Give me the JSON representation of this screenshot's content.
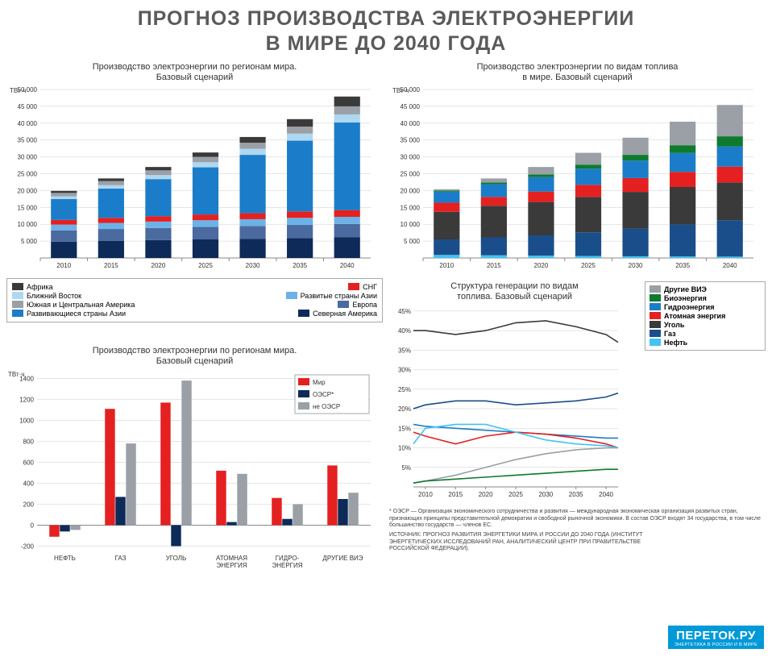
{
  "title_l1": "ПРОГНОЗ ПРОИЗВОДСТВА ЭЛЕКТРОЭНЕРГИИ",
  "title_l2": "В МИРЕ ДО 2040 ГОДА",
  "chart1": {
    "title_l1": "Производство электроэнергии по регионам мира.",
    "title_l2": "Базовый сценарий",
    "yunit": "ТВт·ч",
    "years": [
      "2010",
      "2015",
      "2020",
      "2025",
      "2030",
      "2035",
      "2040"
    ],
    "yticks": [
      5000,
      10000,
      15000,
      20000,
      25000,
      30000,
      35000,
      40000,
      45000,
      50000
    ],
    "ymax": 50000,
    "series": [
      {
        "name": "Северная Америка",
        "color": "#0d2a59",
        "vals": [
          4800,
          5100,
          5300,
          5500,
          5700,
          5900,
          6100
        ]
      },
      {
        "name": "Европа",
        "color": "#4a6aa0",
        "vals": [
          3400,
          3500,
          3600,
          3700,
          3800,
          3900,
          4000
        ]
      },
      {
        "name": "Развитые страны Азии",
        "color": "#6db2e6",
        "vals": [
          1700,
          1800,
          1900,
          2000,
          2000,
          2100,
          2100
        ]
      },
      {
        "name": "СНГ",
        "color": "#e42020",
        "vals": [
          1400,
          1500,
          1600,
          1700,
          1800,
          1900,
          2000
        ]
      },
      {
        "name": "Развивающиеся страны Азии",
        "color": "#1b7dc9",
        "vals": [
          6200,
          8700,
          11000,
          14000,
          17300,
          21000,
          26000
        ]
      },
      {
        "name": "Ближний Восток",
        "color": "#aed7f2",
        "vals": [
          800,
          1000,
          1200,
          1500,
          1800,
          2100,
          2400
        ]
      },
      {
        "name": "Южная и Центральная Америка",
        "color": "#9aa0a6",
        "vals": [
          1000,
          1200,
          1400,
          1600,
          1800,
          2100,
          2400
        ]
      },
      {
        "name": "Африка",
        "color": "#3a3a3a",
        "vals": [
          600,
          800,
          1000,
          1300,
          1700,
          2200,
          2900
        ]
      }
    ],
    "legend": [
      [
        "Африка",
        "#3a3a3a",
        "СНГ",
        "#e42020"
      ],
      [
        "Ближний Восток",
        "#aed7f2",
        "Развитые страны Азии",
        "#6db2e6"
      ],
      [
        "Южная и Центральная Америка",
        "#9aa0a6",
        "Европа",
        "#4a6aa0"
      ],
      [
        "Развивающиеся страны Азии",
        "#1b7dc9",
        "Северная Америка",
        "#0d2a59"
      ]
    ]
  },
  "chart2": {
    "title_l1": "Производство электроэнергии по видам топлива",
    "title_l2": "в мире. Базовый сценарий",
    "yunit": "ТВт·ч",
    "years": [
      "2010",
      "2015",
      "2020",
      "2025",
      "2030",
      "2035",
      "2040"
    ],
    "yticks": [
      5000,
      10000,
      15000,
      20000,
      25000,
      30000,
      35000,
      40000,
      45000,
      50000
    ],
    "ymax": 50000,
    "series": [
      {
        "name": "Нефть",
        "color": "#42c4f0",
        "vals": [
          900,
          800,
          700,
          600,
          500,
          450,
          400
        ]
      },
      {
        "name": "Газ",
        "color": "#1a4e8a",
        "vals": [
          4600,
          5300,
          6000,
          7000,
          8200,
          9500,
          10800
        ]
      },
      {
        "name": "Уголь",
        "color": "#3a3a3a",
        "vals": [
          8200,
          9400,
          9900,
          10500,
          10900,
          11100,
          11200
        ]
      },
      {
        "name": "Атомная энергия",
        "color": "#e42020",
        "vals": [
          2700,
          2600,
          3100,
          3600,
          4100,
          4500,
          4700
        ]
      },
      {
        "name": "Гидроэнергия",
        "color": "#1b7dc9",
        "vals": [
          3300,
          3800,
          4300,
          4800,
          5200,
          5600,
          6000
        ]
      },
      {
        "name": "Биоэнергия",
        "color": "#0e7a2e",
        "vals": [
          300,
          500,
          800,
          1200,
          1700,
          2300,
          3000
        ]
      },
      {
        "name": "Другие ВИЭ",
        "color": "#9aa0a6",
        "vals": [
          400,
          1200,
          2200,
          3500,
          5100,
          7000,
          9300
        ]
      }
    ]
  },
  "chart3": {
    "title_l1": "Производство электроэнергии по регионам мира.",
    "title_l2": "Базовый сценарий",
    "yunit": "ТВт·ч",
    "categories": [
      "НЕФТЬ",
      "ГАЗ",
      "УГОЛЬ",
      "АТОМНАЯ\nЭНЕРГИЯ",
      "ГИДРО-\nЭНЕРГИЯ",
      "ДРУГИЕ ВИЭ"
    ],
    "yticks": [
      -200,
      0,
      200,
      400,
      600,
      800,
      1000,
      1200,
      1400
    ],
    "ymin": -250,
    "ymax": 1450,
    "series": [
      {
        "name": "Мир",
        "color": "#e42020",
        "vals": [
          -110,
          1110,
          1170,
          520,
          260,
          570
        ]
      },
      {
        "name": "ОЭСР*",
        "color": "#0d2a59",
        "vals": [
          -60,
          270,
          -200,
          30,
          60,
          250
        ]
      },
      {
        "name": "не ОЭСР",
        "color": "#9aa0a6",
        "vals": [
          -45,
          780,
          1380,
          490,
          200,
          310
        ]
      }
    ],
    "legend": [
      "Мир",
      "ОЭСР*",
      "не ОЭСР"
    ]
  },
  "chart4": {
    "title_l1": "Структура генерации по видам",
    "title_l2": "топлива. Базовый сценарий",
    "years": [
      2008,
      2010,
      2015,
      2020,
      2025,
      2030,
      2035,
      2040,
      2042
    ],
    "xticks": [
      "2010",
      "2015",
      "2020",
      "2025",
      "2030",
      "2035",
      "2040"
    ],
    "yticks": [
      5,
      10,
      15,
      20,
      25,
      30,
      35,
      40,
      45
    ],
    "ymax": 46,
    "series": [
      {
        "name": "Другие ВИЭ",
        "color": "#9aa0a6",
        "vals": [
          1,
          1.5,
          3,
          5,
          7,
          8.5,
          9.5,
          10,
          10
        ]
      },
      {
        "name": "Биоэнергия",
        "color": "#0e7a2e",
        "vals": [
          1,
          1.5,
          2,
          2.5,
          3,
          3.5,
          4,
          4.5,
          4.5
        ]
      },
      {
        "name": "Гидроэнергия",
        "color": "#1b7dc9",
        "vals": [
          16,
          15.5,
          15,
          14.5,
          14,
          13.5,
          13,
          12.5,
          12.5
        ]
      },
      {
        "name": "Атомная энергия",
        "color": "#e42020",
        "vals": [
          14,
          13,
          11,
          13,
          14,
          13.5,
          12.5,
          11,
          10
        ]
      },
      {
        "name": "Уголь",
        "color": "#3a3a3a",
        "vals": [
          40,
          40,
          39,
          40,
          42,
          42.5,
          41,
          39,
          37
        ]
      },
      {
        "name": "Газ",
        "color": "#1a4e8a",
        "vals": [
          20,
          21,
          22,
          22,
          21,
          21.5,
          22,
          23,
          24
        ]
      },
      {
        "name": "Нефть",
        "color": "#42c4f0",
        "vals": [
          11,
          15,
          16,
          16,
          14,
          12,
          11,
          10.5,
          10
        ]
      }
    ],
    "legend": [
      "Другие ВИЭ",
      "Биоэнергия",
      "Гидроэнергия",
      "Атомная энергия",
      "Уголь",
      "Газ",
      "Нефть"
    ]
  },
  "footnote": "* ОЭСР — Организация экономического сотрудничества и развития — международная экономическая организация развитых стран, признающих принципы представительной демократии и свободной рыночной экономики. В состав ОЭСР входят 34 государства, в том числе большинство государств — членов ЕС.",
  "source": "ИСТОЧНИК: ПРОГНОЗ РАЗВИТИЯ ЭНЕРГЕТИКИ МИРА И РОССИИ ДО 2040 ГОДА (ИНСТИТУТ ЭНЕРГЕТИЧЕСКИХ ИССЛЕДОВАНИЙ РАН, АНАЛИТИЧЕСКИЙ ЦЕНТР ПРИ ПРАВИТЕЛЬСТВЕ РОССИЙСКОЙ ФЕДЕРАЦИИ).",
  "logo_big": "ПЕРЕТОК.РУ",
  "logo_small": "ЭНЕРГЕТИКА В РОССИИ И В МИРЕ",
  "colors": {
    "grid": "#cccccc",
    "axis": "#888",
    "tick_text": "#333"
  }
}
